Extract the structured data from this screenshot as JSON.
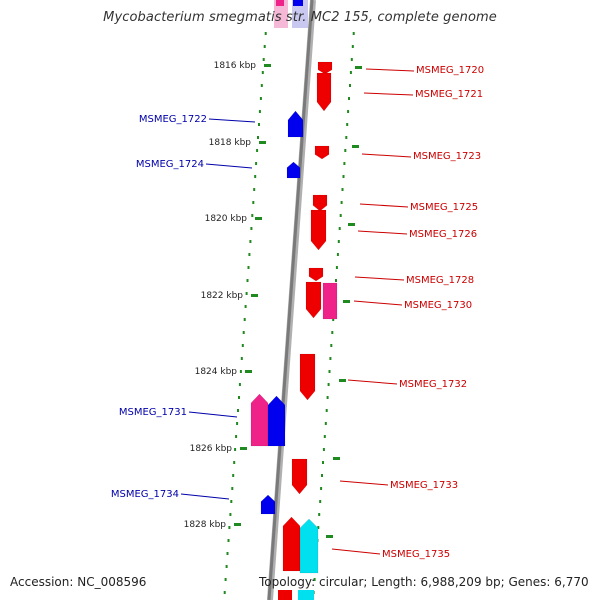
{
  "title": "Mycobacterium smegmatis str. MC2 155, complete genome",
  "accession": "Accession: NC_008596",
  "summary": "Topology: circular; Length: 6,988,209 bp; Genes: 6,770",
  "colors": {
    "backbone": "#8a8a8a",
    "scale_ticks": "#1f8a1f",
    "forward_gene_label": "#cc0000",
    "reverse_gene_label": "#0000aa",
    "gene_red": "#ee0000",
    "gene_blue": "#0000ee",
    "gene_pink": "#ee2288",
    "gene_cyan": "#00e0ee",
    "highlight_pink": "#f5b8d6",
    "highlight_blue": "#c8c8f0"
  },
  "scale_labels": [
    "1816 kbp",
    "1818 kbp",
    "1820 kbp",
    "1822 kbp",
    "1824 kbp",
    "1826 kbp",
    "1828 kbp"
  ],
  "genes": [
    {
      "name": "MSMEG_1720",
      "strand": "+"
    },
    {
      "name": "MSMEG_1721",
      "strand": "+"
    },
    {
      "name": "MSMEG_1722",
      "strand": "-"
    },
    {
      "name": "MSMEG_1723",
      "strand": "+"
    },
    {
      "name": "MSMEG_1724",
      "strand": "-"
    },
    {
      "name": "MSMEG_1725",
      "strand": "+"
    },
    {
      "name": "MSMEG_1726",
      "strand": "+"
    },
    {
      "name": "MSMEG_1728",
      "strand": "+"
    },
    {
      "name": "MSMEG_1730",
      "strand": "+"
    },
    {
      "name": "MSMEG_1732",
      "strand": "+"
    },
    {
      "name": "MSMEG_1731",
      "strand": "-"
    },
    {
      "name": "MSMEG_1733",
      "strand": "+"
    },
    {
      "name": "MSMEG_1734",
      "strand": "-"
    },
    {
      "name": "MSMEG_1735",
      "strand": "+"
    }
  ]
}
